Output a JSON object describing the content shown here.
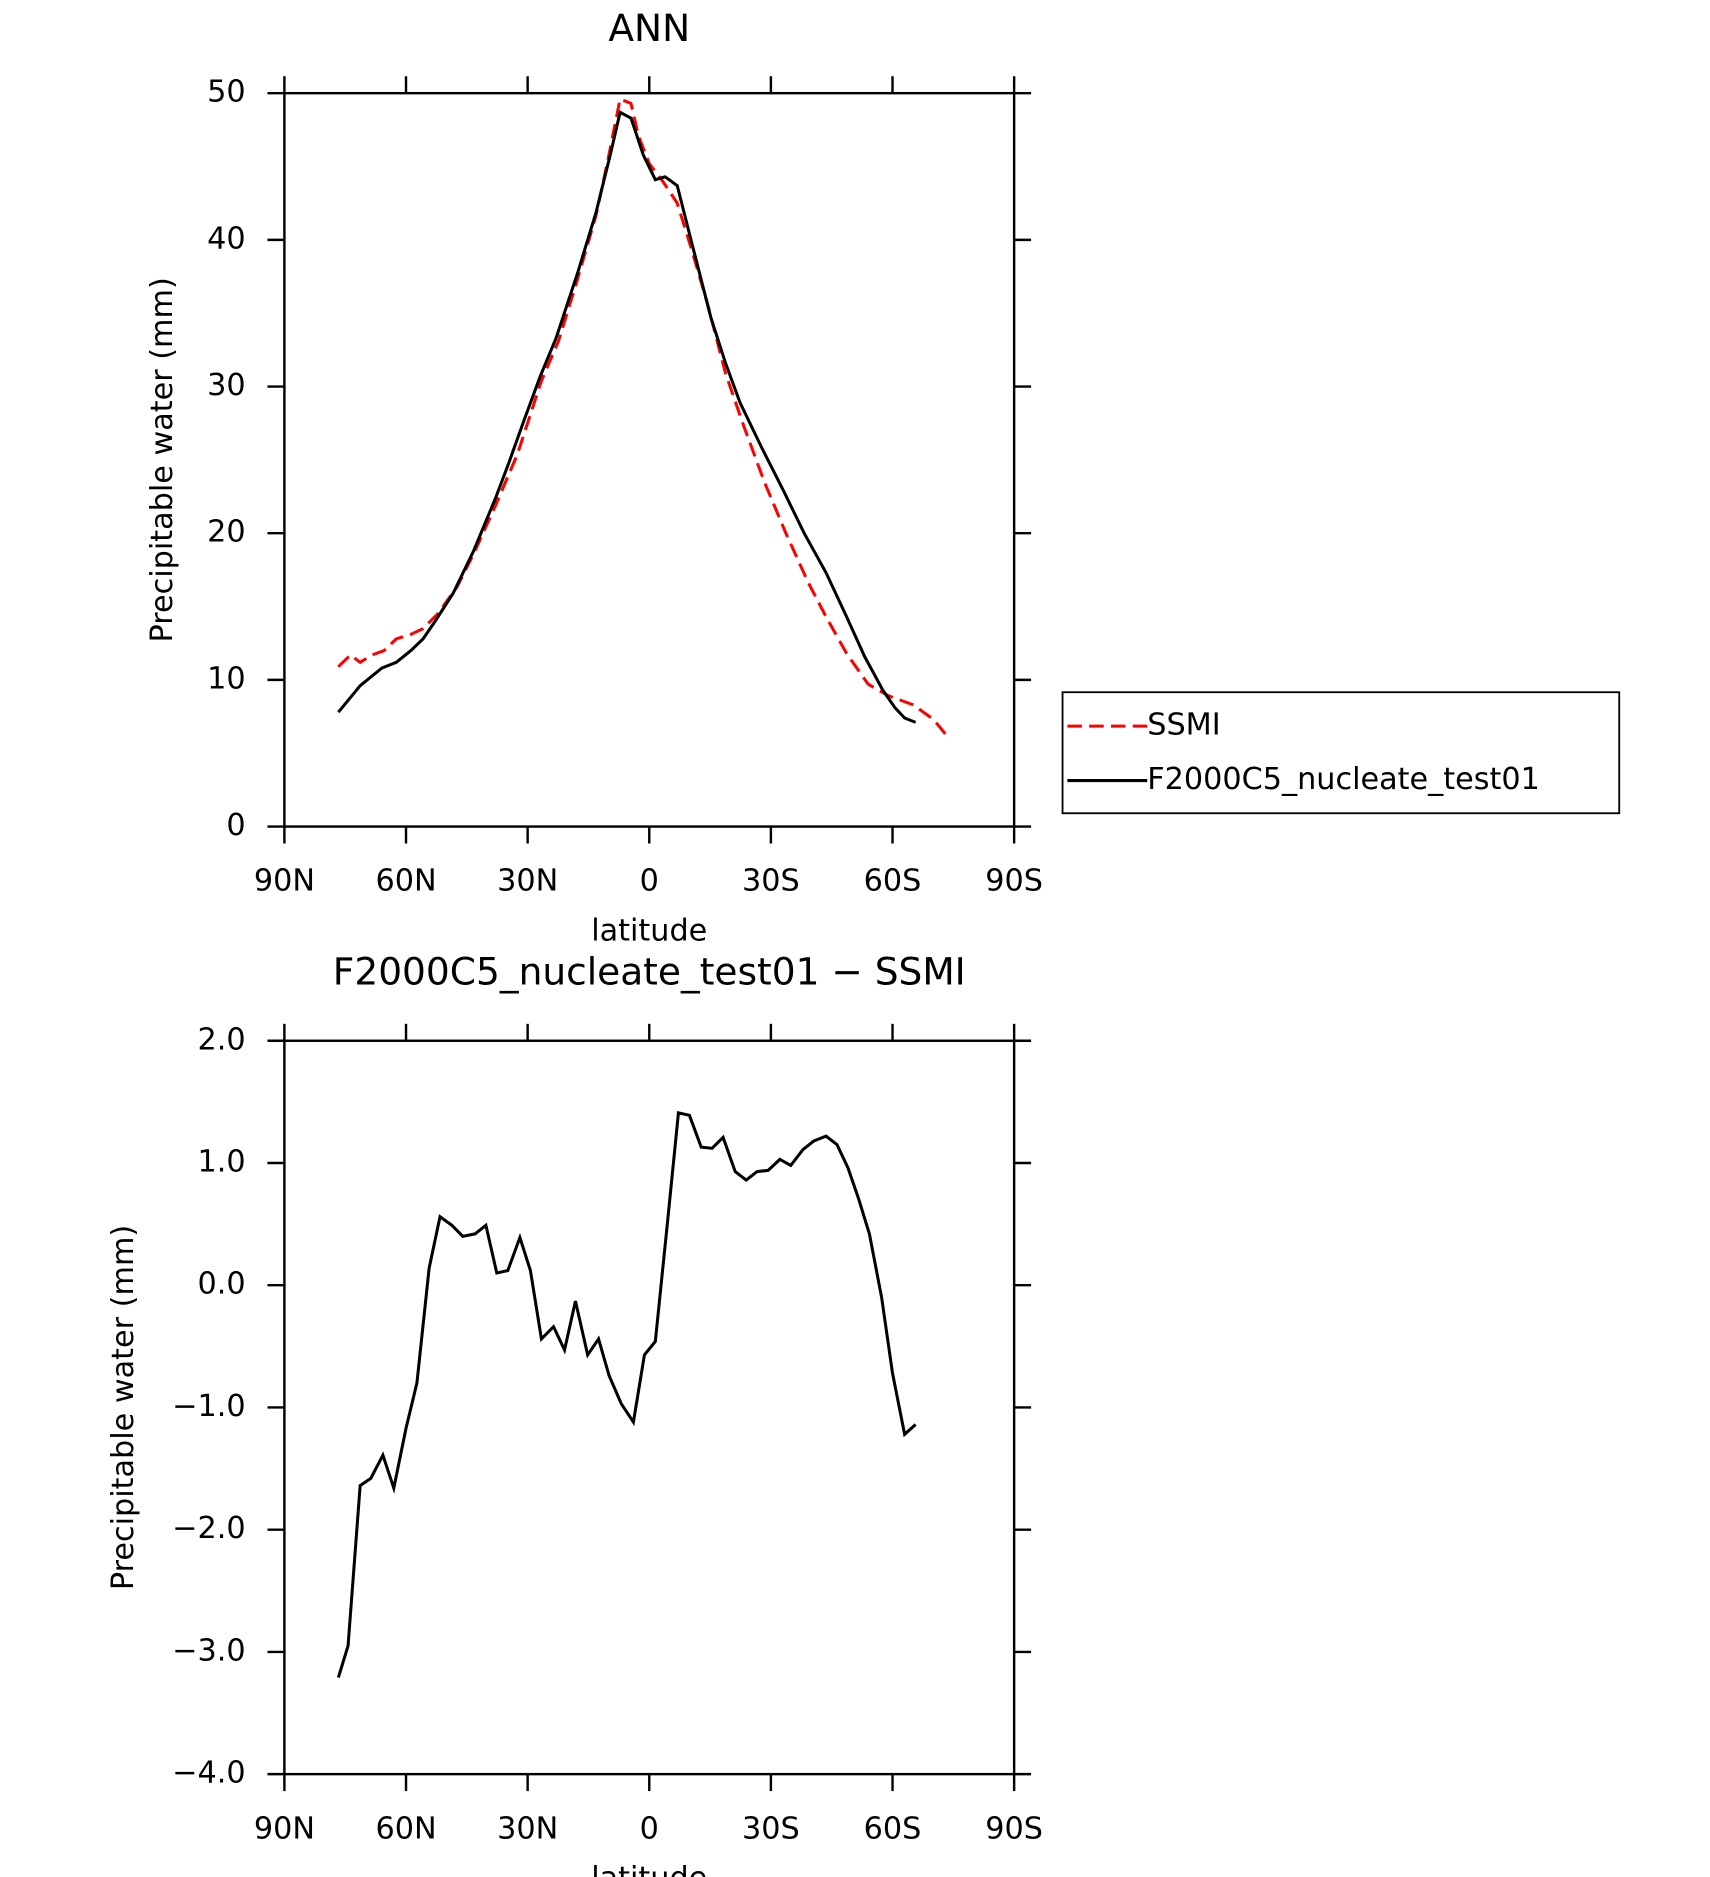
{
  "chart_data": [
    {
      "type": "line",
      "title": "ANN",
      "xlabel": "latitude",
      "ylabel": "Precipitable water (mm)",
      "xlim": [
        90,
        -90
      ],
      "xticks": [
        {
          "value": 90,
          "label": "90N"
        },
        {
          "value": 60,
          "label": "60N"
        },
        {
          "value": 30,
          "label": "30N"
        },
        0,
        {
          "value": -30,
          "label": "30S"
        },
        {
          "value": -60,
          "label": "60S"
        },
        {
          "value": -90,
          "label": "90S"
        }
      ],
      "ylim": [
        0,
        50
      ],
      "yticks": [
        0,
        10,
        20,
        30,
        40,
        50
      ],
      "legend": "right",
      "series": [
        {
          "name": "SSMI",
          "color": "#ff0000",
          "dashed": true,
          "x": [
            76.7,
            73.7,
            71.3,
            68.4,
            65.4,
            62.4,
            58.8,
            55.8,
            52.2,
            47.5,
            43.3,
            37.9,
            32.5,
            26.6,
            22.4,
            17.6,
            13.1,
            10.1,
            7.2,
            4.5,
            2.7,
            0,
            -3.3,
            -6.9,
            -10.4,
            -14.3,
            -18.8,
            -23.3,
            -28.4,
            -33.7,
            -39.1,
            -43.6,
            -48.7,
            -54,
            -59.1,
            -65.1,
            -70.1,
            -74
          ],
          "values": [
            10.9,
            11.7,
            11.2,
            11.7,
            12,
            12.8,
            13.1,
            13.5,
            14.5,
            16.3,
            18.6,
            21.9,
            25.4,
            30.4,
            33.1,
            37.4,
            41.7,
            45.6,
            49.6,
            49.3,
            47.1,
            45.2,
            44,
            42.5,
            39.4,
            35.7,
            30.9,
            27.3,
            23.5,
            20,
            16.7,
            14.3,
            11.8,
            9.7,
            8.9,
            8.3,
            7.3,
            6
          ]
        },
        {
          "name": "F2000C5_nucleate_test01",
          "color": "#000000",
          "dashed": false,
          "x": [
            76.7,
            71.3,
            66,
            62.4,
            58.8,
            55.8,
            52.8,
            48.4,
            43.3,
            37.9,
            34.9,
            31,
            26.9,
            23,
            17.6,
            13.1,
            9.6,
            7.2,
            4.5,
            1.5,
            -1.5,
            -3.9,
            -6.9,
            -10.4,
            -15.2,
            -18.8,
            -22.4,
            -27.8,
            -33.1,
            -38.2,
            -43.6,
            -48.7,
            -53.1,
            -57.6,
            -60.6,
            -63,
            -65.7
          ],
          "values": [
            7.8,
            9.6,
            10.8,
            11.2,
            12,
            12.8,
            14,
            15.9,
            18.8,
            22.4,
            24.6,
            27.6,
            30.7,
            33.3,
            37.8,
            41.9,
            45.8,
            48.7,
            48.3,
            45.8,
            44.1,
            44.3,
            43.7,
            39.9,
            34.7,
            31.6,
            28.9,
            25.8,
            22.9,
            20,
            17.3,
            14.3,
            11.6,
            9.3,
            8.1,
            7.4,
            7.1
          ]
        }
      ]
    },
    {
      "type": "line",
      "title": "F2000C5_nucleate_test01 − SSMI",
      "xlabel": "latitude",
      "ylabel": "Precipitable water (mm)",
      "xlim": [
        90,
        -90
      ],
      "xticks": [
        {
          "value": 90,
          "label": "90N"
        },
        {
          "value": 60,
          "label": "60N"
        },
        {
          "value": 30,
          "label": "30N"
        },
        0,
        {
          "value": -30,
          "label": "30S"
        },
        {
          "value": -60,
          "label": "60S"
        },
        {
          "value": -90,
          "label": "90S"
        }
      ],
      "ylim": [
        -4,
        2
      ],
      "yticks": [
        {
          "value": -4,
          "label": "−4.0"
        },
        {
          "value": -3,
          "label": "−3.0"
        },
        {
          "value": -2,
          "label": "−2.0"
        },
        {
          "value": -1,
          "label": "−1.0"
        },
        {
          "value": 0,
          "label": "0.0"
        },
        {
          "value": 1,
          "label": "1.0"
        },
        {
          "value": 2,
          "label": "2.0"
        }
      ],
      "series": [
        {
          "color": "#000000",
          "dashed": false,
          "x": [
            76.7,
            74.3,
            71.3,
            68.7,
            65.7,
            63,
            60,
            57.3,
            54.3,
            51.6,
            48.7,
            46,
            43,
            40.3,
            37.6,
            34.9,
            31.9,
            29.3,
            26.6,
            23.6,
            20.9,
            18.2,
            15.2,
            12.5,
            9.9,
            6.9,
            3.9,
            1.2,
            -1.5,
            -4.5,
            -7.2,
            -9.9,
            -12.8,
            -15.5,
            -18.2,
            -21.2,
            -23.9,
            -26.6,
            -29.3,
            -32.2,
            -34.9,
            -37.9,
            -40.6,
            -43.6,
            -46.3,
            -49,
            -51.6,
            -54.3,
            -57.3,
            -60,
            -63,
            -65.7
          ],
          "values": [
            -3.21,
            -2.95,
            -1.64,
            -1.58,
            -1.39,
            -1.66,
            -1.17,
            -0.8,
            0.14,
            0.56,
            0.49,
            0.4,
            0.42,
            0.49,
            0.1,
            0.12,
            0.39,
            0.12,
            -0.44,
            -0.34,
            -0.53,
            -0.13,
            -0.57,
            -0.44,
            -0.74,
            -0.97,
            -1.12,
            -0.57,
            -0.46,
            0.52,
            1.41,
            1.39,
            1.13,
            1.12,
            1.21,
            0.93,
            0.86,
            0.93,
            0.94,
            1.03,
            0.98,
            1.11,
            1.18,
            1.22,
            1.15,
            0.96,
            0.71,
            0.42,
            -0.1,
            -0.72,
            -1.22,
            -1.14
          ]
        }
      ]
    }
  ]
}
